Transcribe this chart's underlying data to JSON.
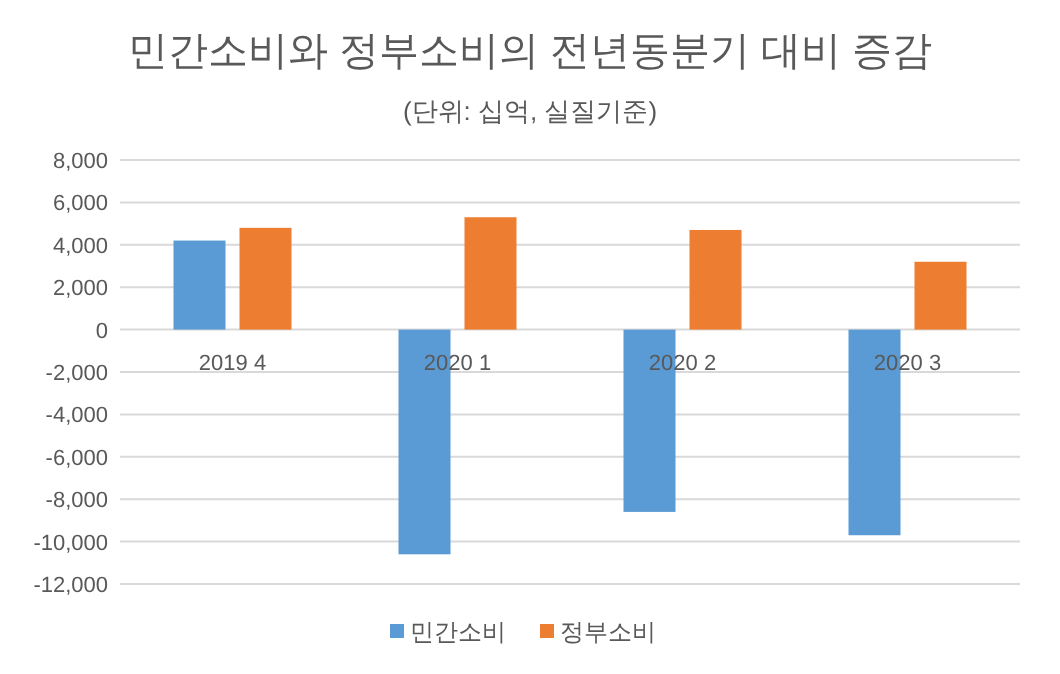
{
  "chart_data": {
    "type": "bar",
    "title": "민간소비와 정부소비의 전년동분기 대비 증감",
    "subtitle": "(단위: 십억, 실질기준)",
    "categories": [
      "2019 4",
      "2020 1",
      "2020 2",
      "2020 3"
    ],
    "series": [
      {
        "name": "민간소비",
        "color": "#5b9bd5",
        "values": [
          4200,
          -10600,
          -8600,
          -9700
        ]
      },
      {
        "name": "정부소비",
        "color": "#ed7d31",
        "values": [
          4800,
          5300,
          4700,
          3200
        ]
      }
    ],
    "ylim": [
      -12000,
      8000
    ],
    "yticks": [
      {
        "value": -12000,
        "label": "-12,000"
      },
      {
        "value": -10000,
        "label": "-10,000"
      },
      {
        "value": -8000,
        "label": "-8,000"
      },
      {
        "value": -6000,
        "label": "-6,000"
      },
      {
        "value": -4000,
        "label": "-4,000"
      },
      {
        "value": -2000,
        "label": "-2,000"
      },
      0,
      {
        "value": 2000,
        "label": "2,000"
      },
      {
        "value": 4000,
        "label": "4,000"
      },
      {
        "value": 6000,
        "label": "6,000"
      },
      {
        "value": 8000,
        "label": "8,000"
      }
    ],
    "grid": "y",
    "legend": "bottom"
  }
}
